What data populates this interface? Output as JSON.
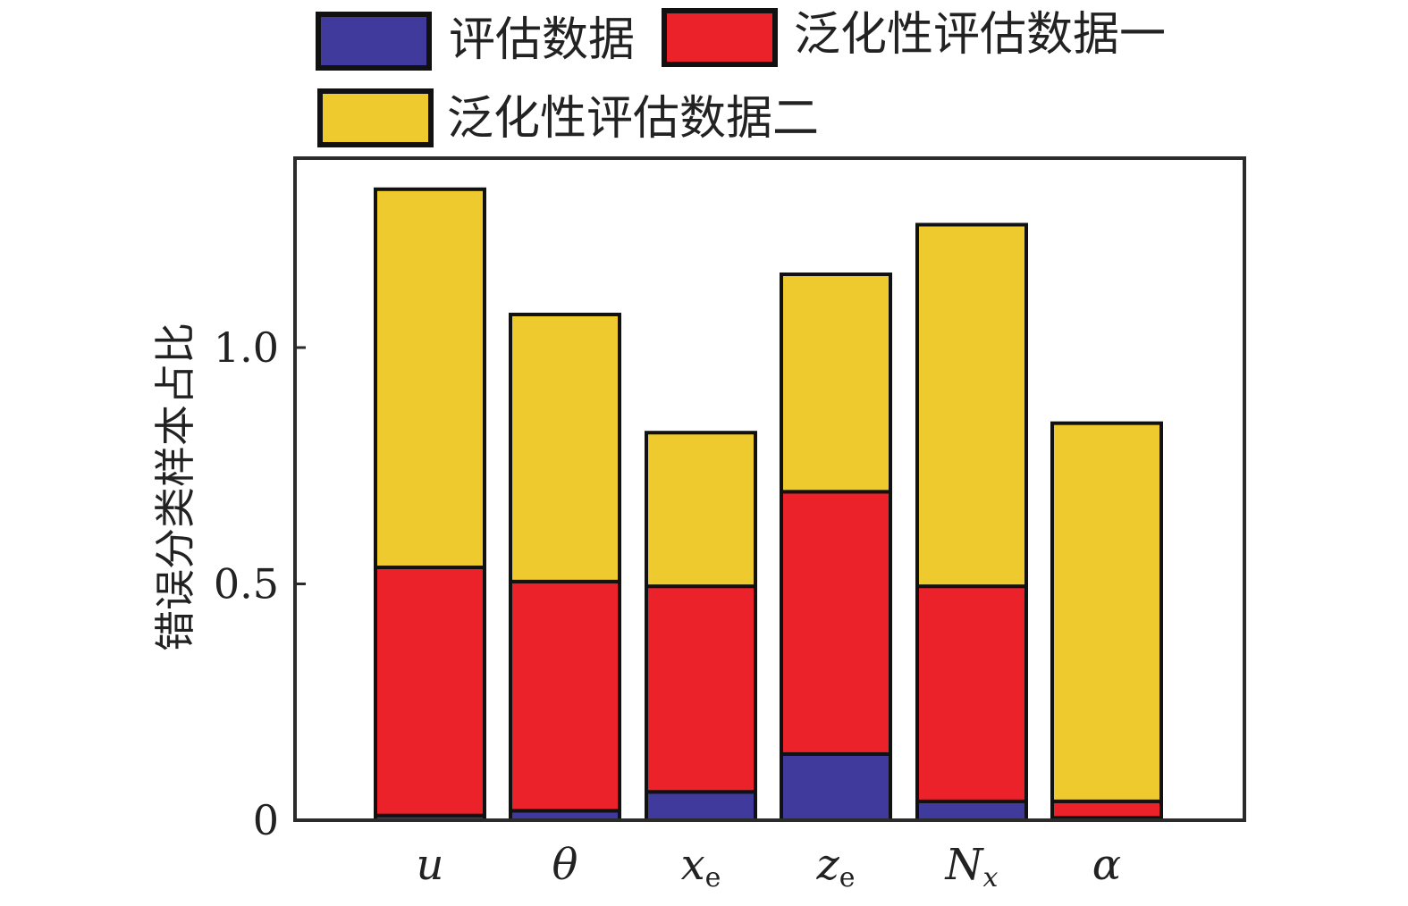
{
  "chart_data": {
    "type": "bar",
    "stacked": true,
    "title": "",
    "xlabel": "",
    "ylabel": "错误分类样本占比",
    "ylim": [
      0,
      1.4
    ],
    "yticks": [
      {
        "value": 0,
        "label": "0"
      },
      {
        "value": 0.5,
        "label": "0.5"
      },
      {
        "value": 1.0,
        "label": "1.0"
      }
    ],
    "categories": [
      {
        "main": "u",
        "sub": ""
      },
      {
        "main": "θ",
        "sub": ""
      },
      {
        "main": "x",
        "sub": "e"
      },
      {
        "main": "z",
        "sub": "e"
      },
      {
        "main": "N",
        "sub": "x"
      },
      {
        "main": "α",
        "sub": ""
      }
    ],
    "series": [
      {
        "name": "评估数据",
        "color": "#3f3a9c",
        "values": [
          0.01,
          0.02,
          0.06,
          0.14,
          0.04,
          0.005
        ]
      },
      {
        "name": "泛化性评估数据一",
        "color": "#ec222b",
        "values": [
          0.525,
          0.485,
          0.435,
          0.555,
          0.455,
          0.035
        ]
      },
      {
        "name": "泛化性评估数据二",
        "color": "#eeca2f",
        "values": [
          0.8,
          0.565,
          0.325,
          0.46,
          0.765,
          0.8
        ]
      }
    ],
    "legend_position": "top",
    "grid": false
  }
}
